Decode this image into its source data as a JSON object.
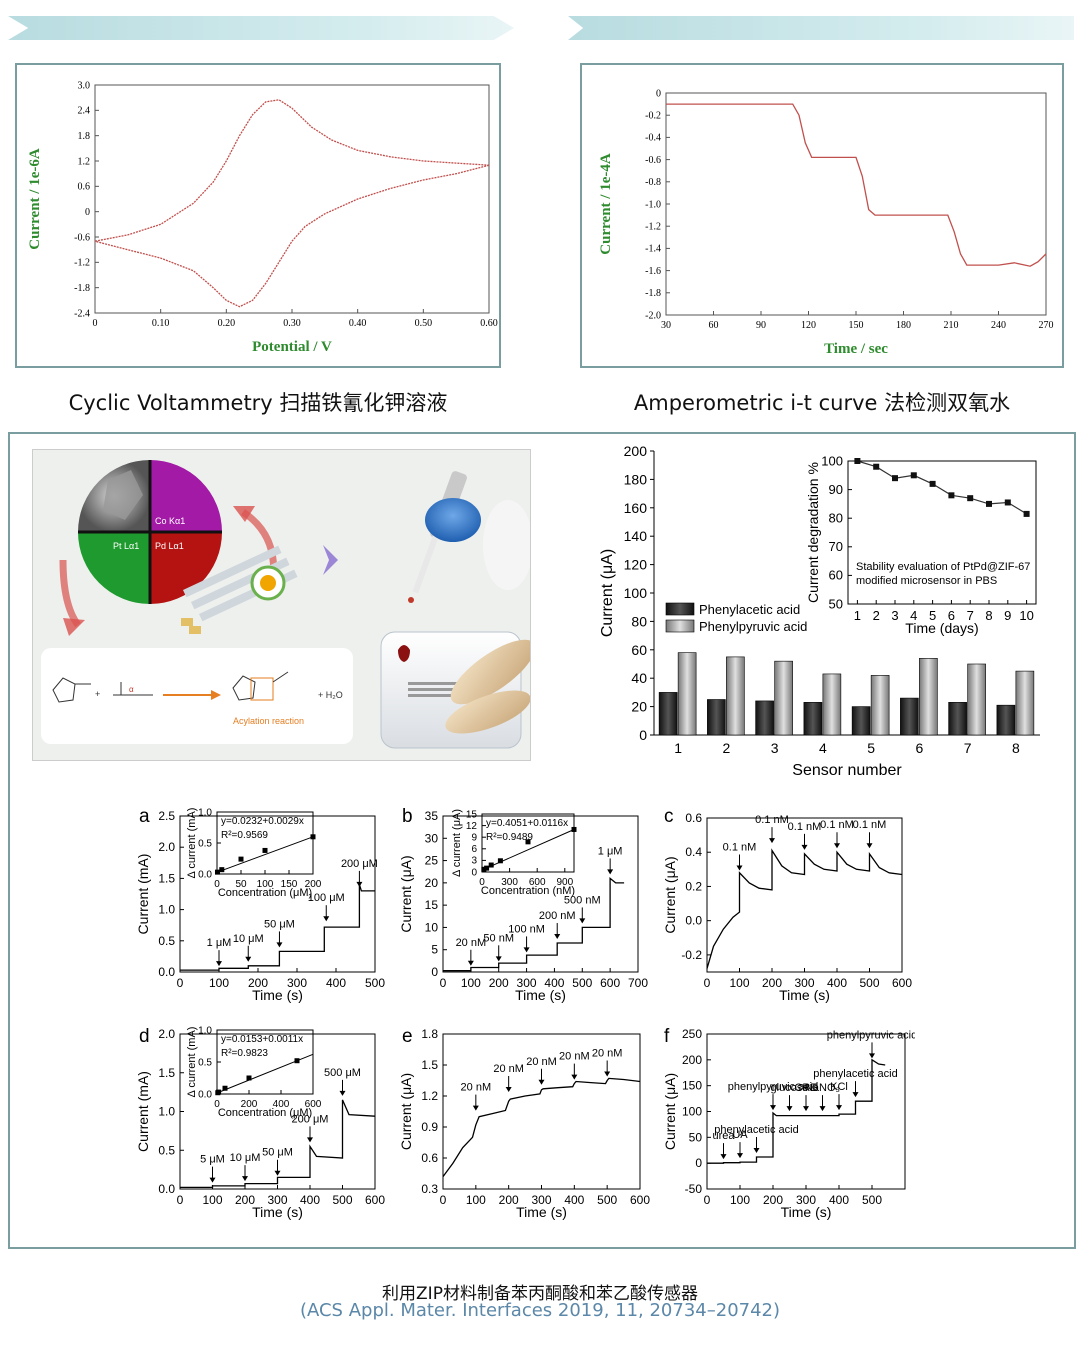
{
  "top_left_caption": "Cyclic Voltammetry 扫描铁氰化钾溶液",
  "top_right_caption": "Amperometric i-t curve 法检测双氧水",
  "footer": {
    "title": "利用ZIP材料制备苯丙酮酸和苯乙酸传感器",
    "citation": "(ACS Appl. Mater. Interfaces 2019, 11, 20734–20742)"
  },
  "schematic": {
    "map_labels": [
      "Co Kα1",
      "Pt Lα1",
      "Pd Lα1"
    ],
    "reaction_label": "Acylation reaction",
    "water": "+ H₂O"
  },
  "colors": {
    "green_label": "#2e8b2e",
    "cv_line": "#c0504d",
    "panel_border": "#7a9e9f",
    "footer_blue": "#5b87a8"
  },
  "chart_data": [
    {
      "type": "line",
      "xlabel": "Potential / V",
      "ylabel": "Current / 1e-6A",
      "xlim": [
        0,
        0.6
      ],
      "ylim": [
        -2.4,
        3.0
      ],
      "xticks": [
        "0",
        "0.10",
        "0.20",
        "0.30",
        "0.40",
        "0.50",
        "0.60"
      ],
      "yticks": [
        "-2.4",
        "-1.8",
        "-1.2",
        "-0.6",
        "0",
        "0.6",
        "1.2",
        "1.8",
        "2.4",
        "3.0"
      ],
      "series": [
        {
          "x": [
            0,
            0.05,
            0.1,
            0.15,
            0.18,
            0.2,
            0.22,
            0.24,
            0.26,
            0.28,
            0.3,
            0.33,
            0.36,
            0.4,
            0.45,
            0.5,
            0.55,
            0.6
          ],
          "y": [
            -0.7,
            -0.55,
            -0.3,
            0.2,
            0.7,
            1.2,
            1.8,
            2.3,
            2.6,
            2.65,
            2.45,
            2.0,
            1.7,
            1.45,
            1.3,
            1.2,
            1.15,
            1.1
          ]
        },
        {
          "x": [
            0.6,
            0.55,
            0.5,
            0.45,
            0.4,
            0.35,
            0.32,
            0.3,
            0.28,
            0.26,
            0.24,
            0.22,
            0.2,
            0.18,
            0.15,
            0.1,
            0.05,
            0
          ],
          "y": [
            1.1,
            0.9,
            0.75,
            0.55,
            0.3,
            -0.05,
            -0.35,
            -0.7,
            -1.2,
            -1.7,
            -2.1,
            -2.25,
            -2.1,
            -1.8,
            -1.4,
            -1.1,
            -0.9,
            -0.7
          ]
        }
      ]
    },
    {
      "type": "line",
      "xlabel": "Time / sec",
      "ylabel": "Current / 1e-4A",
      "xlim": [
        30,
        270
      ],
      "ylim": [
        -2.0,
        0
      ],
      "xticks": [
        "30",
        "60",
        "90",
        "120",
        "150",
        "180",
        "210",
        "240",
        "270"
      ],
      "yticks": [
        "-2.0",
        "-1.8",
        "-1.6",
        "-1.4",
        "-1.2",
        "-1.0",
        "-0.8",
        "-0.6",
        "-0.4",
        "-0.2",
        "0"
      ],
      "series": [
        {
          "x": [
            30,
            80,
            110,
            114,
            118,
            122,
            150,
            154,
            158,
            162,
            208,
            212,
            216,
            220,
            240,
            250,
            260,
            265,
            270
          ],
          "y": [
            -0.1,
            -0.1,
            -0.1,
            -0.2,
            -0.45,
            -0.58,
            -0.58,
            -0.75,
            -1.05,
            -1.1,
            -1.1,
            -1.25,
            -1.45,
            -1.55,
            -1.55,
            -1.53,
            -1.56,
            -1.52,
            -1.45
          ]
        }
      ]
    },
    {
      "type": "bar",
      "xlabel": "Sensor number",
      "ylabel": "Current (μA)",
      "ylim": [
        0,
        200
      ],
      "yticks": [
        "0",
        "20",
        "40",
        "60",
        "80",
        "100",
        "120",
        "140",
        "160",
        "180",
        "200"
      ],
      "categories": [
        "1",
        "2",
        "3",
        "4",
        "5",
        "6",
        "7",
        "8"
      ],
      "series": [
        {
          "name": "Phenylacetic acid",
          "values": [
            30,
            25,
            24,
            23,
            20,
            26,
            23,
            21
          ]
        },
        {
          "name": "Phenylpyruvic acid",
          "values": [
            58,
            55,
            52,
            43,
            42,
            54,
            50,
            45
          ]
        }
      ],
      "inset": {
        "type": "line",
        "xlabel": "Time (days)",
        "ylabel": "Current degradation %",
        "xlim": [
          0.5,
          10.5
        ],
        "ylim": [
          50,
          100
        ],
        "xticks": [
          "1",
          "2",
          "3",
          "4",
          "5",
          "6",
          "7",
          "8",
          "9",
          "10"
        ],
        "yticks": [
          "50",
          "60",
          "70",
          "80",
          "90",
          "100"
        ],
        "text": [
          "Stability evaluation of PtPd@ZIF-67",
          "modified microsensor in PBS"
        ],
        "x": [
          1,
          2,
          3,
          4,
          5,
          6,
          7,
          8,
          9,
          10
        ],
        "y": [
          100,
          98,
          94,
          95,
          92,
          88,
          87,
          85,
          85.5,
          81.5
        ]
      }
    },
    {
      "type": "line",
      "panel": "a",
      "xlabel": "Time (s)",
      "ylabel": "Current (mA)",
      "xlim": [
        0,
        500
      ],
      "ylim": [
        0,
        2.5
      ],
      "xticks": [
        "0",
        "100",
        "200",
        "300",
        "400",
        "500"
      ],
      "yticks": [
        "0.0",
        "0.5",
        "1.0",
        "1.5",
        "2.0",
        "2.5"
      ],
      "annotations": [
        {
          "text": "1 μM",
          "x": 100,
          "y": 0.03
        },
        {
          "text": "10 μM",
          "x": 175,
          "y": 0.1
        },
        {
          "text": "50 μM",
          "x": 255,
          "y": 0.33
        },
        {
          "text": "100 μM",
          "x": 375,
          "y": 0.75
        },
        {
          "text": "200 μM",
          "x": 460,
          "y": 1.3
        }
      ],
      "series": [
        {
          "x": [
            0,
            100,
            100,
            175,
            175,
            255,
            255,
            370,
            370,
            460,
            460,
            465,
            500
          ],
          "y": [
            0.03,
            0.03,
            0.06,
            0.06,
            0.1,
            0.1,
            0.33,
            0.33,
            0.72,
            0.72,
            1.4,
            1.3,
            1.3
          ]
        }
      ],
      "inset": {
        "xlabel": "Concentration (μM)",
        "ylabel": "Δ current (mA)",
        "xticks": [
          "0",
          "50",
          "100",
          "150",
          "200"
        ],
        "yticks": [
          "0.0",
          "0.5",
          "1.0"
        ],
        "xlim": [
          0,
          200
        ],
        "ylim": [
          0,
          1.0
        ],
        "equation": "y=0.0232+0.0029x",
        "r2": "R²=0.9569",
        "x": [
          1,
          10,
          50,
          100,
          200
        ],
        "y": [
          0.03,
          0.07,
          0.24,
          0.38,
          0.6
        ]
      }
    },
    {
      "type": "line",
      "panel": "b",
      "xlabel": "Time (s)",
      "ylabel": "Current (μA)",
      "xlim": [
        0,
        700
      ],
      "ylim": [
        0,
        35
      ],
      "xticks": [
        "0",
        "100",
        "200",
        "300",
        "400",
        "500",
        "600",
        "700"
      ],
      "yticks": [
        "0",
        "5",
        "10",
        "15",
        "20",
        "25",
        "30",
        "35"
      ],
      "annotations": [
        {
          "text": "20 nM",
          "x": 100,
          "y": 0.5
        },
        {
          "text": "50 nM",
          "x": 200,
          "y": 1.5
        },
        {
          "text": "100 nM",
          "x": 300,
          "y": 3.5
        },
        {
          "text": "200 nM",
          "x": 410,
          "y": 6.5
        },
        {
          "text": "500 nM",
          "x": 500,
          "y": 10
        },
        {
          "text": "1 μM",
          "x": 600,
          "y": 21
        }
      ],
      "series": [
        {
          "x": [
            0,
            100,
            100,
            200,
            200,
            300,
            300,
            410,
            410,
            500,
            500,
            600,
            600,
            620,
            650
          ],
          "y": [
            0.3,
            0.3,
            1.0,
            1.0,
            2.0,
            2.0,
            3.8,
            3.8,
            6.5,
            6.5,
            10,
            10,
            21,
            20,
            20
          ]
        }
      ],
      "inset": {
        "xlabel": "Concentration (nM)",
        "ylabel": "Δ current (μA)",
        "xticks": [
          "0",
          "300",
          "600",
          "900"
        ],
        "yticks": [
          "0",
          "3",
          "6",
          "9",
          "12",
          "15"
        ],
        "xlim": [
          0,
          1000
        ],
        "ylim": [
          0,
          15
        ],
        "equation": "y=0.4051+0.0116x",
        "r2": "R²=0.9489",
        "x": [
          20,
          50,
          100,
          200,
          500,
          1000
        ],
        "y": [
          0.7,
          1.0,
          1.8,
          2.9,
          7.8,
          11
        ]
      }
    },
    {
      "type": "line",
      "panel": "c",
      "xlabel": "Time (s)",
      "ylabel": "Current (μA)",
      "xlim": [
        0,
        600
      ],
      "ylim": [
        -0.3,
        0.6
      ],
      "xticks": [
        "0",
        "100",
        "200",
        "300",
        "400",
        "500",
        "600"
      ],
      "yticks": [
        "-0.2",
        "0.0",
        "0.2",
        "0.4",
        "0.6"
      ],
      "annotations": [
        {
          "text": "0.1 nM",
          "x": 100,
          "y": 0.27
        },
        {
          "text": "0.1 nM",
          "x": 200,
          "y": 0.43
        },
        {
          "text": "0.1 nM",
          "x": 300,
          "y": 0.39
        },
        {
          "text": "0.1 nM",
          "x": 400,
          "y": 0.4
        },
        {
          "text": "0.1 nM",
          "x": 500,
          "y": 0.4
        }
      ],
      "series": [
        {
          "x": [
            0,
            20,
            50,
            80,
            100,
            100,
            130,
            160,
            200,
            200,
            230,
            260,
            300,
            300,
            330,
            360,
            400,
            400,
            430,
            460,
            500,
            500,
            530,
            560,
            600
          ],
          "y": [
            -0.28,
            -0.15,
            -0.05,
            0.02,
            0.05,
            0.28,
            0.22,
            0.19,
            0.18,
            0.41,
            0.32,
            0.28,
            0.27,
            0.39,
            0.33,
            0.3,
            0.29,
            0.4,
            0.33,
            0.3,
            0.29,
            0.39,
            0.31,
            0.28,
            0.27
          ]
        }
      ]
    },
    {
      "type": "line",
      "panel": "d",
      "xlabel": "Time (s)",
      "ylabel": "Current (mA)",
      "xlim": [
        0,
        600
      ],
      "ylim": [
        0,
        2.0
      ],
      "xticks": [
        "0",
        "100",
        "200",
        "300",
        "400",
        "500",
        "600"
      ],
      "yticks": [
        "0.0",
        "0.5",
        "1.0",
        "1.5",
        "2.0"
      ],
      "annotations": [
        {
          "text": "5 μM",
          "x": 100,
          "y": 0.03
        },
        {
          "text": "10 μM",
          "x": 200,
          "y": 0.05
        },
        {
          "text": "50 μM",
          "x": 300,
          "y": 0.12
        },
        {
          "text": "200 μM",
          "x": 400,
          "y": 0.55
        },
        {
          "text": "500 μM",
          "x": 500,
          "y": 1.15
        }
      ],
      "series": [
        {
          "x": [
            0,
            100,
            100,
            200,
            200,
            300,
            300,
            400,
            400,
            420,
            500,
            500,
            520,
            600
          ],
          "y": [
            0.02,
            0.02,
            0.04,
            0.04,
            0.07,
            0.07,
            0.15,
            0.15,
            0.55,
            0.42,
            0.4,
            1.15,
            0.96,
            0.94
          ]
        }
      ],
      "inset": {
        "xlabel": "Concentration (μM)",
        "ylabel": "Δ current (mA)",
        "xticks": [
          "0",
          "200",
          "400",
          "600"
        ],
        "yticks": [
          "0.0",
          "0.5",
          "1.0"
        ],
        "xlim": [
          0,
          600
        ],
        "ylim": [
          0,
          1.0
        ],
        "equation": "y=0.0153+0.0011x",
        "r2": "R²=0.9823",
        "x": [
          5,
          10,
          50,
          200,
          500
        ],
        "y": [
          0.02,
          0.03,
          0.09,
          0.25,
          0.52
        ]
      }
    },
    {
      "type": "line",
      "panel": "e",
      "xlabel": "Time (s)",
      "ylabel": "Current (μA)",
      "xlim": [
        0,
        600
      ],
      "ylim": [
        0.3,
        1.8
      ],
      "xticks": [
        "0",
        "100",
        "200",
        "300",
        "400",
        "500",
        "600"
      ],
      "yticks": [
        "0.3",
        "0.6",
        "0.9",
        "1.2",
        "1.5",
        "1.8"
      ],
      "annotations": [
        {
          "text": "20 nM",
          "x": 100,
          "y": 1.02
        },
        {
          "text": "20 nM",
          "x": 200,
          "y": 1.2
        },
        {
          "text": "20 nM",
          "x": 300,
          "y": 1.27
        },
        {
          "text": "20 nM",
          "x": 400,
          "y": 1.32
        },
        {
          "text": "20 nM",
          "x": 500,
          "y": 1.35
        }
      ],
      "series": [
        {
          "x": [
            0,
            30,
            60,
            90,
            100,
            110,
            150,
            190,
            200,
            205,
            250,
            295,
            300,
            305,
            350,
            395,
            400,
            405,
            450,
            495,
            500,
            505,
            550,
            600
          ],
          "y": [
            0.42,
            0.55,
            0.7,
            0.8,
            0.92,
            1.0,
            1.03,
            1.06,
            1.15,
            1.17,
            1.2,
            1.22,
            1.26,
            1.27,
            1.28,
            1.29,
            1.32,
            1.34,
            1.33,
            1.32,
            1.35,
            1.37,
            1.36,
            1.34
          ]
        }
      ]
    },
    {
      "type": "line",
      "panel": "f",
      "xlabel": "Time (s)",
      "ylabel": "Current (μA)",
      "xlim": [
        0,
        600
      ],
      "ylim": [
        -50,
        250
      ],
      "xticks": [
        "0",
        "100",
        "200",
        "300",
        "400",
        "500"
      ],
      "yticks": [
        "-50",
        "0",
        "50",
        "100",
        "150",
        "200",
        "250"
      ],
      "annotations": [
        {
          "text": "urea",
          "x": 50,
          "y": 0
        },
        {
          "text": "UA",
          "x": 100,
          "y": 2
        },
        {
          "text": "phenylacetic acid",
          "x": 150,
          "y": 12
        },
        {
          "text": "phenylpyruvic acid",
          "x": 200,
          "y": 95
        },
        {
          "text": "glucose",
          "x": 250,
          "y": 93
        },
        {
          "text": "CRE",
          "x": 300,
          "y": 93
        },
        {
          "text": "NaNO₃",
          "x": 350,
          "y": 93
        },
        {
          "text": "KCl",
          "x": 400,
          "y": 95
        },
        {
          "text": "phenylacetic acid",
          "x": 450,
          "y": 120
        },
        {
          "text": "phenylpyruvic acid",
          "x": 500,
          "y": 195
        }
      ],
      "series": [
        {
          "x": [
            0,
            50,
            50,
            100,
            100,
            150,
            150,
            200,
            200,
            210,
            250,
            300,
            350,
            400,
            400,
            450,
            450,
            500,
            500,
            520,
            540
          ],
          "y": [
            0,
            0,
            1,
            1,
            2,
            2,
            12,
            12,
            97,
            92,
            92,
            92,
            92,
            92,
            95,
            95,
            120,
            120,
            200,
            192,
            190
          ]
        }
      ]
    }
  ]
}
